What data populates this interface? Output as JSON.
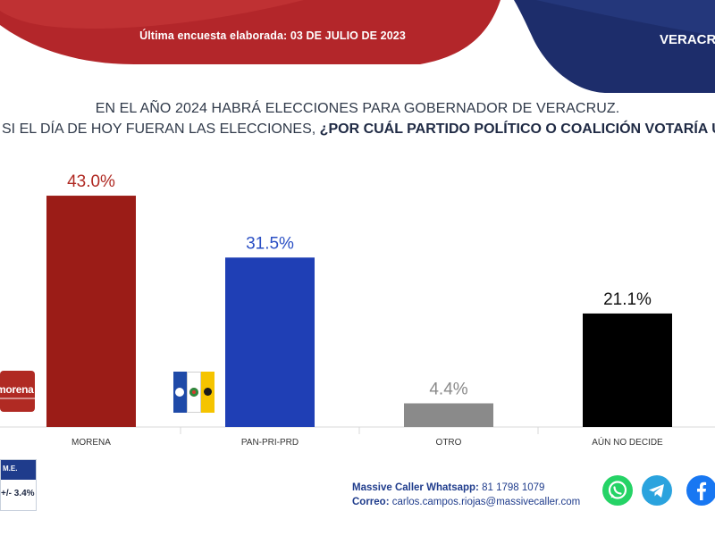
{
  "header": {
    "survey_date": "Última encuesta elaborada: 03 DE JULIO DE 2023",
    "state_title": "VERACRUZ"
  },
  "question": {
    "line1": "EN EL AÑO 2024 HABRÁ ELECCIONES PARA GOBERNADOR DE VERACRUZ.",
    "line2_prefix": "SI EL DÍA DE HOY FUERAN LAS ELECCIONES, ",
    "line2_bold": "¿POR CUÁL PARTIDO POLÍTICO O COALICIÓN VOTARÍA USTED?"
  },
  "chart_data": {
    "type": "bar",
    "categories": [
      "MORENA",
      "PAN-PRI-PRD",
      "OTRO",
      "AÚN NO DECIDE"
    ],
    "values": [
      43.0,
      31.5,
      4.4,
      21.1
    ],
    "value_labels": [
      "43.0%",
      "31.5%",
      "4.4%",
      "21.1%"
    ],
    "colors": [
      "#9b1c17",
      "#1f3fb5",
      "#8a8a8a",
      "#000000"
    ],
    "label_colors": [
      "#b02a23",
      "#2a4fc4",
      "#8a8a8a",
      "#111111"
    ],
    "ylim": [
      0,
      45
    ],
    "grid": false,
    "legend": "none"
  },
  "logos": {
    "morena_text": "morena"
  },
  "margin_of_error": {
    "label": "M.E.",
    "value": "+/- 3.4%"
  },
  "contact": {
    "whatsapp_label": "Massive Caller Whatsapp:",
    "whatsapp_number": "81 1798 1079",
    "email_label": "Correo:",
    "email": "carlos.campos.riojas@massivecaller.com"
  },
  "colors": {
    "header_red": "#b3262a",
    "header_navy": "#1d2d6b",
    "brand_blue": "#1f3c8c"
  },
  "social_icons": [
    "whatsapp-icon",
    "telegram-icon",
    "facebook-icon"
  ]
}
